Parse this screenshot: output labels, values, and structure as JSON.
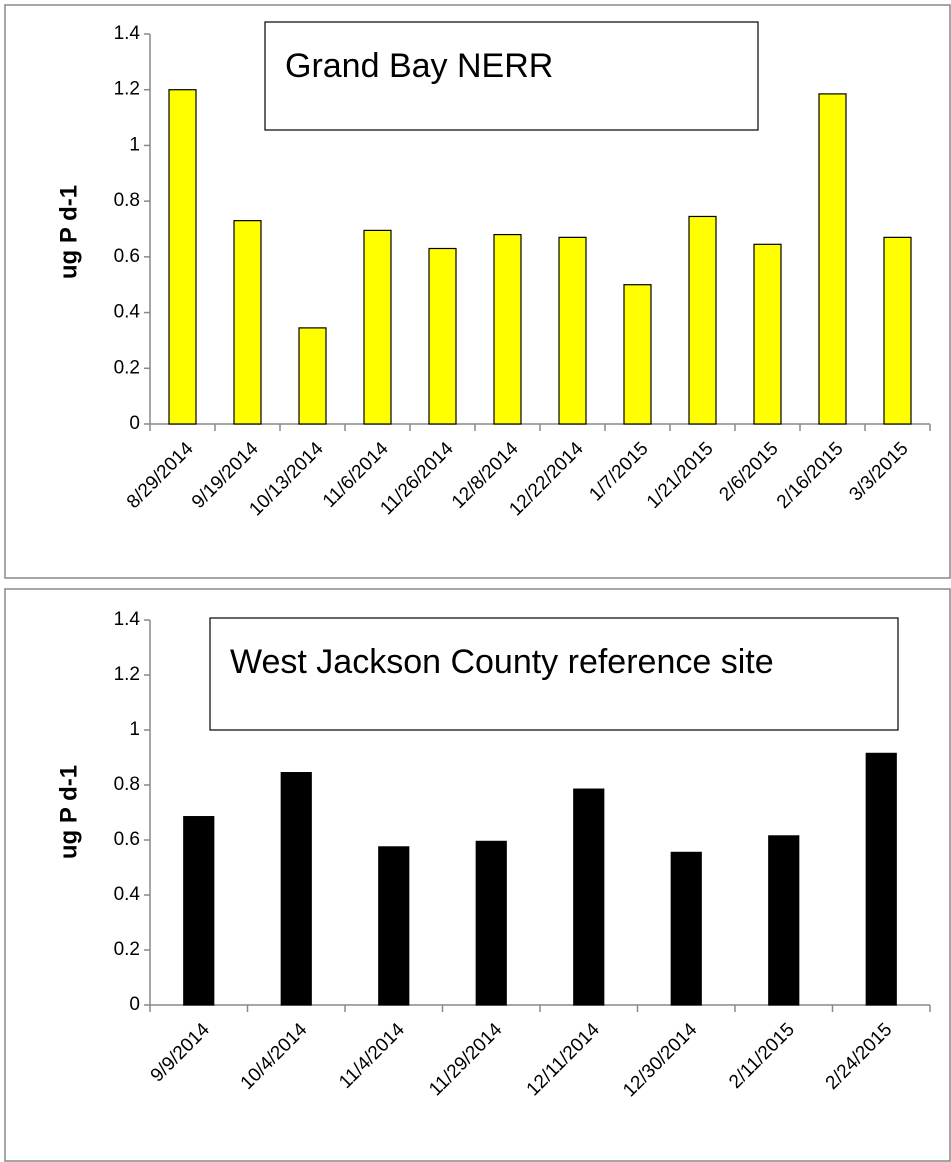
{
  "chart_data": [
    {
      "type": "bar",
      "title": "Grand Bay NERR",
      "y_label": "ug P d-1",
      "categories": [
        "8/29/2014",
        "9/19/2014",
        "10/13/2014",
        "11/6/2014",
        "11/26/2014",
        "12/8/2014",
        "12/22/2014",
        "1/7/2015",
        "1/21/2015",
        "2/6/2015",
        "2/16/2015",
        "3/3/2015"
      ],
      "values": [
        1.2,
        0.73,
        0.345,
        0.695,
        0.63,
        0.68,
        0.67,
        0.5,
        0.745,
        0.645,
        1.185,
        0.67
      ],
      "color": "#ffff00",
      "ylim": [
        0,
        1.4
      ],
      "yticks": [
        0,
        0.2,
        0.4,
        0.6,
        0.8,
        1,
        1.2,
        1.4
      ],
      "grid": false
    },
    {
      "type": "bar",
      "title": "West Jackson County reference site",
      "y_label": "ug P d-1",
      "categories": [
        "9/9/2014",
        "10/4/2014",
        "11/4/2014",
        "11/29/2014",
        "12/11/2014",
        "12/30/2014",
        "2/11/2015",
        "2/24/2015"
      ],
      "values": [
        0.685,
        0.845,
        0.575,
        0.595,
        0.785,
        0.555,
        0.615,
        0.915
      ],
      "color": "#000000",
      "ylim": [
        0,
        1.4
      ],
      "yticks": [
        0,
        0.2,
        0.4,
        0.6,
        0.8,
        1,
        1.2,
        1.4
      ],
      "grid": false
    }
  ]
}
